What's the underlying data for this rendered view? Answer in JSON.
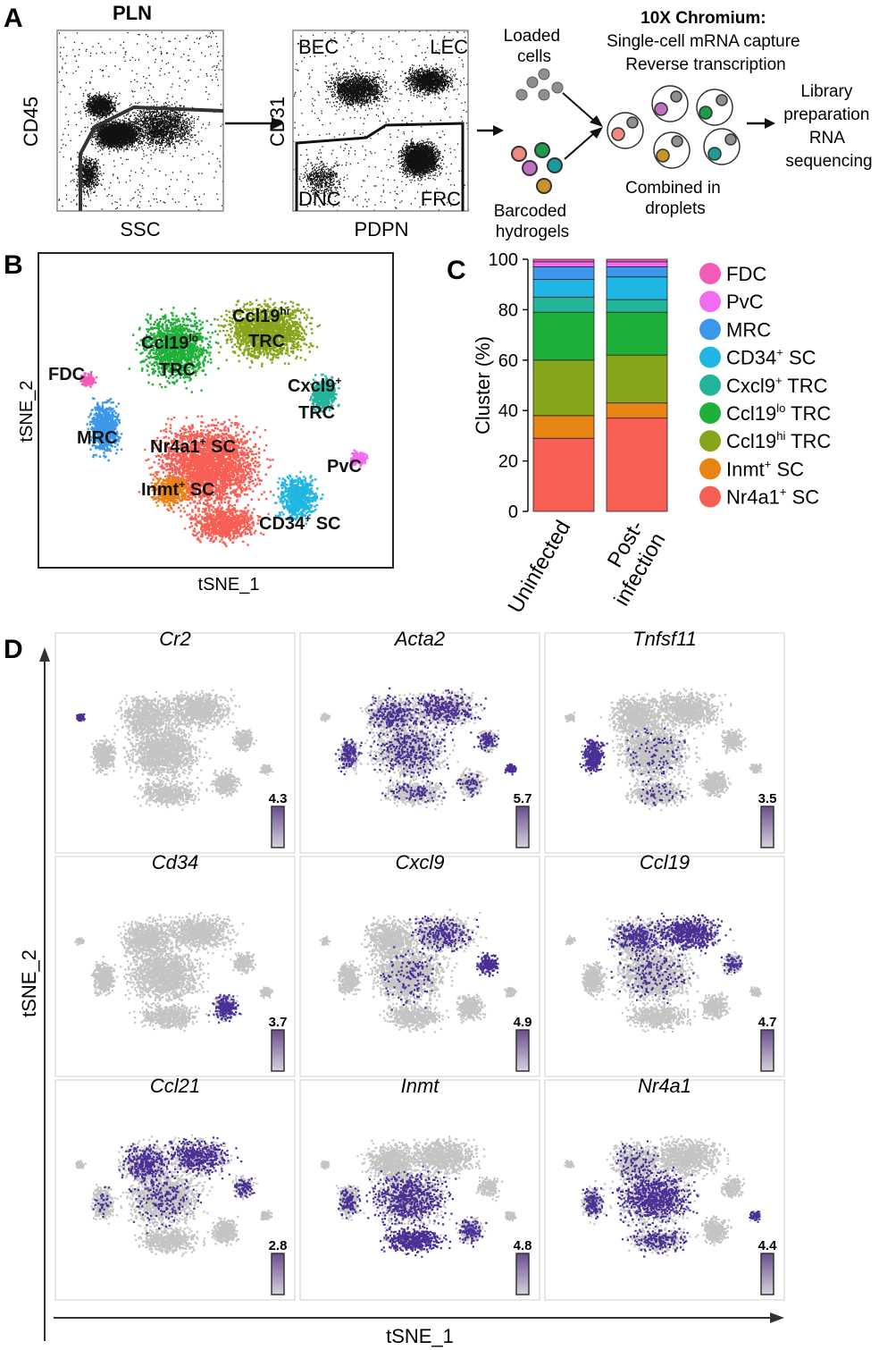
{
  "panels": {
    "a": {
      "letter": "A",
      "plot1": {
        "title": "PLN",
        "xlabel": "SSC",
        "ylabel": "CD45"
      },
      "plot2": {
        "xlabel": "PDPN",
        "ylabel": "CD31",
        "gates": {
          "bec": "BEC",
          "lec": "LEC",
          "dnc": "DNC",
          "frc": "FRC"
        }
      },
      "workflow": {
        "loaded": [
          "Loaded",
          "cells"
        ],
        "barcoded": [
          "Barcoded",
          "hydrogels"
        ],
        "chromium": [
          "10X Chromium:",
          "Single-cell mRNA capture",
          "Reverse transcription"
        ],
        "combined": [
          "Combined in",
          "droplets"
        ],
        "library": [
          "Library",
          "preparation",
          "RNA",
          "sequencing"
        ]
      }
    },
    "b": {
      "letter": "B",
      "xlabel": "tSNE_1",
      "ylabel": "tSNE_2",
      "cluster_labels": {
        "ccl19hi": {
          "main": "Ccl19",
          "sup": "hi",
          "line2": "TRC"
        },
        "ccl19lo": {
          "main": "Ccl19",
          "sup": "lo",
          "line2": "TRC"
        },
        "fdc": "FDC",
        "cxcl9": {
          "main": "Cxcl9",
          "sup": "+",
          "line2": "TRC"
        },
        "mrc": "MRC",
        "nr4a1": {
          "main": "Nr4a1",
          "sup": "+",
          "rest": " SC"
        },
        "pvc": "PvC",
        "inmt": {
          "main": "Inmt",
          "sup": "+",
          "rest": " SC"
        },
        "cd34": {
          "main": "CD34",
          "sup": "+",
          "rest": " SC"
        }
      }
    },
    "c": {
      "letter": "C",
      "legend": [
        {
          "main": "FDC",
          "sup": "",
          "rest": "",
          "color": "#f25bb8"
        },
        {
          "main": "PvC",
          "sup": "",
          "rest": "",
          "color": "#f36bf0"
        },
        {
          "main": "MRC",
          "sup": "",
          "rest": "",
          "color": "#3b97ea"
        },
        {
          "main": "CD34",
          "sup": "+",
          "rest": " SC",
          "color": "#1fb6e3"
        },
        {
          "main": "Cxcl9",
          "sup": "+",
          "rest": " TRC",
          "color": "#22b59b"
        },
        {
          "main": "Ccl19",
          "sup": "lo",
          "rest": " TRC",
          "color": "#1fb03a"
        },
        {
          "main": "Ccl19",
          "sup": "hi",
          "rest": " TRC",
          "color": "#86a51a"
        },
        {
          "main": "Inmt",
          "sup": "+",
          "rest": " SC",
          "color": "#e88414"
        },
        {
          "main": "Nr4a1",
          "sup": "+",
          "rest": " SC",
          "color": "#f85f54"
        }
      ]
    },
    "d": {
      "letter": "D",
      "xlabel": "tSNE_1",
      "ylabel": "tSNE_2",
      "genes": [
        {
          "name": "Cr2",
          "max": "4.3",
          "pattern": "fdc"
        },
        {
          "name": "Acta2",
          "max": "5.7",
          "pattern": "broad-pvc"
        },
        {
          "name": "Tnfsf11",
          "max": "3.5",
          "pattern": "mrc"
        },
        {
          "name": "Cd34",
          "max": "3.7",
          "pattern": "cd34"
        },
        {
          "name": "Cxcl9",
          "max": "4.9",
          "pattern": "cxcl9"
        },
        {
          "name": "Ccl19",
          "max": "4.7",
          "pattern": "ccl19"
        },
        {
          "name": "Ccl21",
          "max": "2.8",
          "pattern": "ccl21"
        },
        {
          "name": "Inmt",
          "max": "4.8",
          "pattern": "inmt"
        },
        {
          "name": "Nr4a1",
          "max": "4.4",
          "pattern": "nr4a1"
        }
      ]
    }
  },
  "chart_data": {
    "type": "bar",
    "stacked": true,
    "ylabel": "Cluster (%)",
    "ylim": [
      0,
      100
    ],
    "yticks": [
      0,
      20,
      40,
      60,
      80,
      100
    ],
    "categories": [
      "Uninfected",
      "Post-infection"
    ],
    "category_lines": [
      [
        "Uninfected"
      ],
      [
        "Post-",
        "infection"
      ]
    ],
    "series": [
      {
        "name": "Nr4a1+ SC",
        "color": "#f85f54",
        "values": [
          29,
          37
        ]
      },
      {
        "name": "Inmt+ SC",
        "color": "#e88414",
        "values": [
          9,
          6
        ]
      },
      {
        "name": "Ccl19hi TRC",
        "color": "#86a51a",
        "values": [
          22,
          19
        ]
      },
      {
        "name": "Ccl19lo TRC",
        "color": "#1fb03a",
        "values": [
          19,
          17
        ]
      },
      {
        "name": "Cxcl9+ TRC",
        "color": "#22b59b",
        "values": [
          6,
          5
        ]
      },
      {
        "name": "CD34+ SC",
        "color": "#1fb6e3",
        "values": [
          7,
          9
        ]
      },
      {
        "name": "MRC",
        "color": "#3b97ea",
        "values": [
          5,
          4
        ]
      },
      {
        "name": "PvC",
        "color": "#f36bf0",
        "values": [
          2,
          2
        ]
      },
      {
        "name": "FDC",
        "color": "#f25bb8",
        "values": [
          1,
          1
        ]
      }
    ]
  }
}
